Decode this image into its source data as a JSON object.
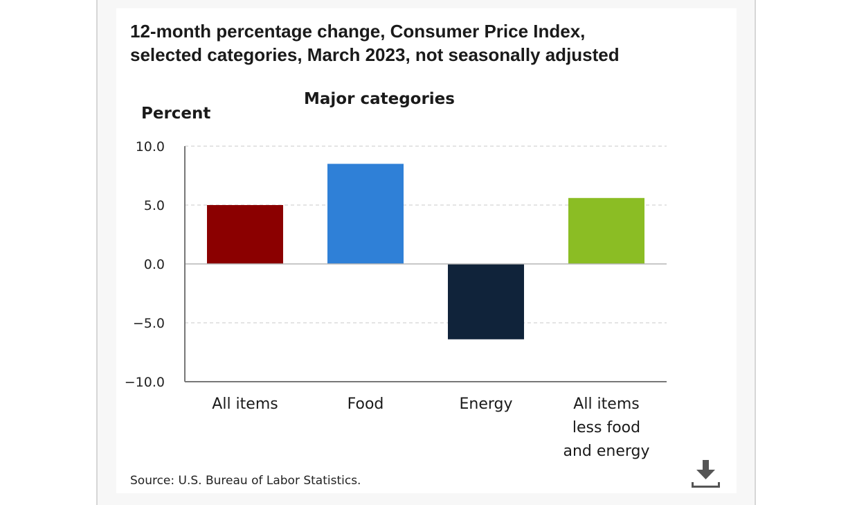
{
  "header": {
    "title_line1": "12-month percentage change, Consumer Price Index,",
    "title_line2": "selected categories, March 2023, not seasonally adjusted"
  },
  "chart_data": {
    "type": "bar",
    "subtitle": "Major categories",
    "ylabel": "Percent",
    "xlabel": "",
    "ylim": [
      -10,
      10
    ],
    "yticks": [
      10,
      5,
      0,
      -5,
      -10
    ],
    "ytick_labels": [
      "10.0",
      "5.0",
      "0.0",
      "−5.0",
      "−10.0"
    ],
    "grid": true,
    "categories": [
      [
        "All items"
      ],
      [
        "Food"
      ],
      [
        "Energy"
      ],
      [
        "All items",
        "less food",
        "and energy"
      ]
    ],
    "values": [
      5.0,
      8.5,
      -6.4,
      5.6
    ],
    "colors": [
      "#8b0000",
      "#2f80d7",
      "#10233a",
      "#8bbd24"
    ]
  },
  "footer": {
    "source": "Source: U.S. Bureau of Labor Statistics.",
    "download_icon": "download-icon"
  }
}
